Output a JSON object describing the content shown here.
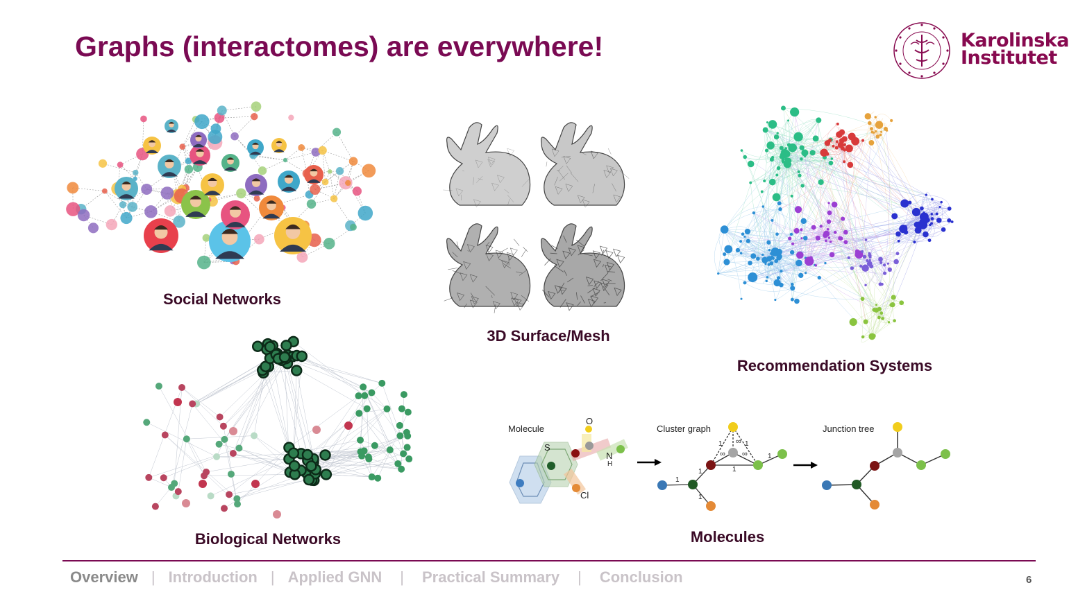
{
  "slide": {
    "title": "Graphs (interactomes) are everywhere!",
    "page_number": "6"
  },
  "logo": {
    "line1": "Karolinska",
    "line2": "Institutet",
    "seal_text": "KAROLINSKA INSTITUTET · ANNO 1810"
  },
  "captions": {
    "social": "Social Networks",
    "mesh": "3D Surface/Mesh",
    "recommendation": "Recommendation Systems",
    "biological": "Biological Networks",
    "molecules": "Molecules"
  },
  "molecule_figure": {
    "molecule_label": "Molecule",
    "cluster_label": "Cluster graph",
    "tree_label": "Junction tree",
    "atom_s": "S",
    "atom_o": "O",
    "atom_n": "N",
    "atom_h": "H",
    "atom_cl": "Cl",
    "edge_weight": "1",
    "edge_inf": "∞"
  },
  "nav": {
    "items": [
      "Overview",
      "Introduction",
      "Applied GNN",
      "Practical Summary",
      "Conclusion"
    ],
    "active": "Overview",
    "separator": "|"
  },
  "colors": {
    "title": "#7a0a53",
    "brand": "#87094f",
    "nav_inactive": "#c9c3c8",
    "nav_active": "#8a8a8a"
  }
}
